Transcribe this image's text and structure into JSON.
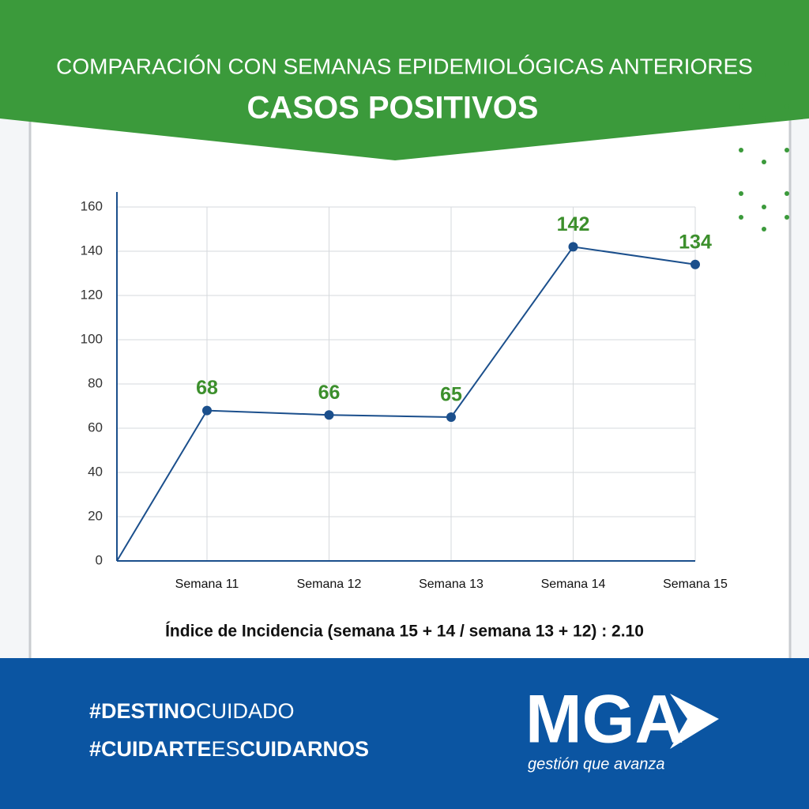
{
  "header": {
    "title": "COMPARACIÓN CON SEMANAS EPIDEMIOLÓGICAS ANTERIORES",
    "subtitle": "CASOS POSITIVOS"
  },
  "chart_data": {
    "type": "line",
    "categories": [
      null,
      "Semana 11",
      "Semana 12",
      "Semana 13",
      "Semana 14",
      "Semana 15"
    ],
    "values": [
      0,
      68,
      66,
      65,
      142,
      134
    ],
    "color": "#1b4f8c",
    "label_color": "#3c8f2c",
    "ylim": [
      0,
      160
    ],
    "yticks": [
      0,
      20,
      40,
      60,
      80,
      100,
      120,
      140,
      160
    ],
    "grid": true
  },
  "note": "Índice de Incidencia (semana 15 + 14 / semana 13 + 12) : 2.10",
  "footer": {
    "hashtags": [
      [
        "#DESTINO",
        "CUIDADO"
      ],
      [
        "#CUIDARTE",
        "ES",
        "CUIDARNOS"
      ]
    ],
    "logo": "MGA",
    "slogan": "gestión que avanza"
  }
}
